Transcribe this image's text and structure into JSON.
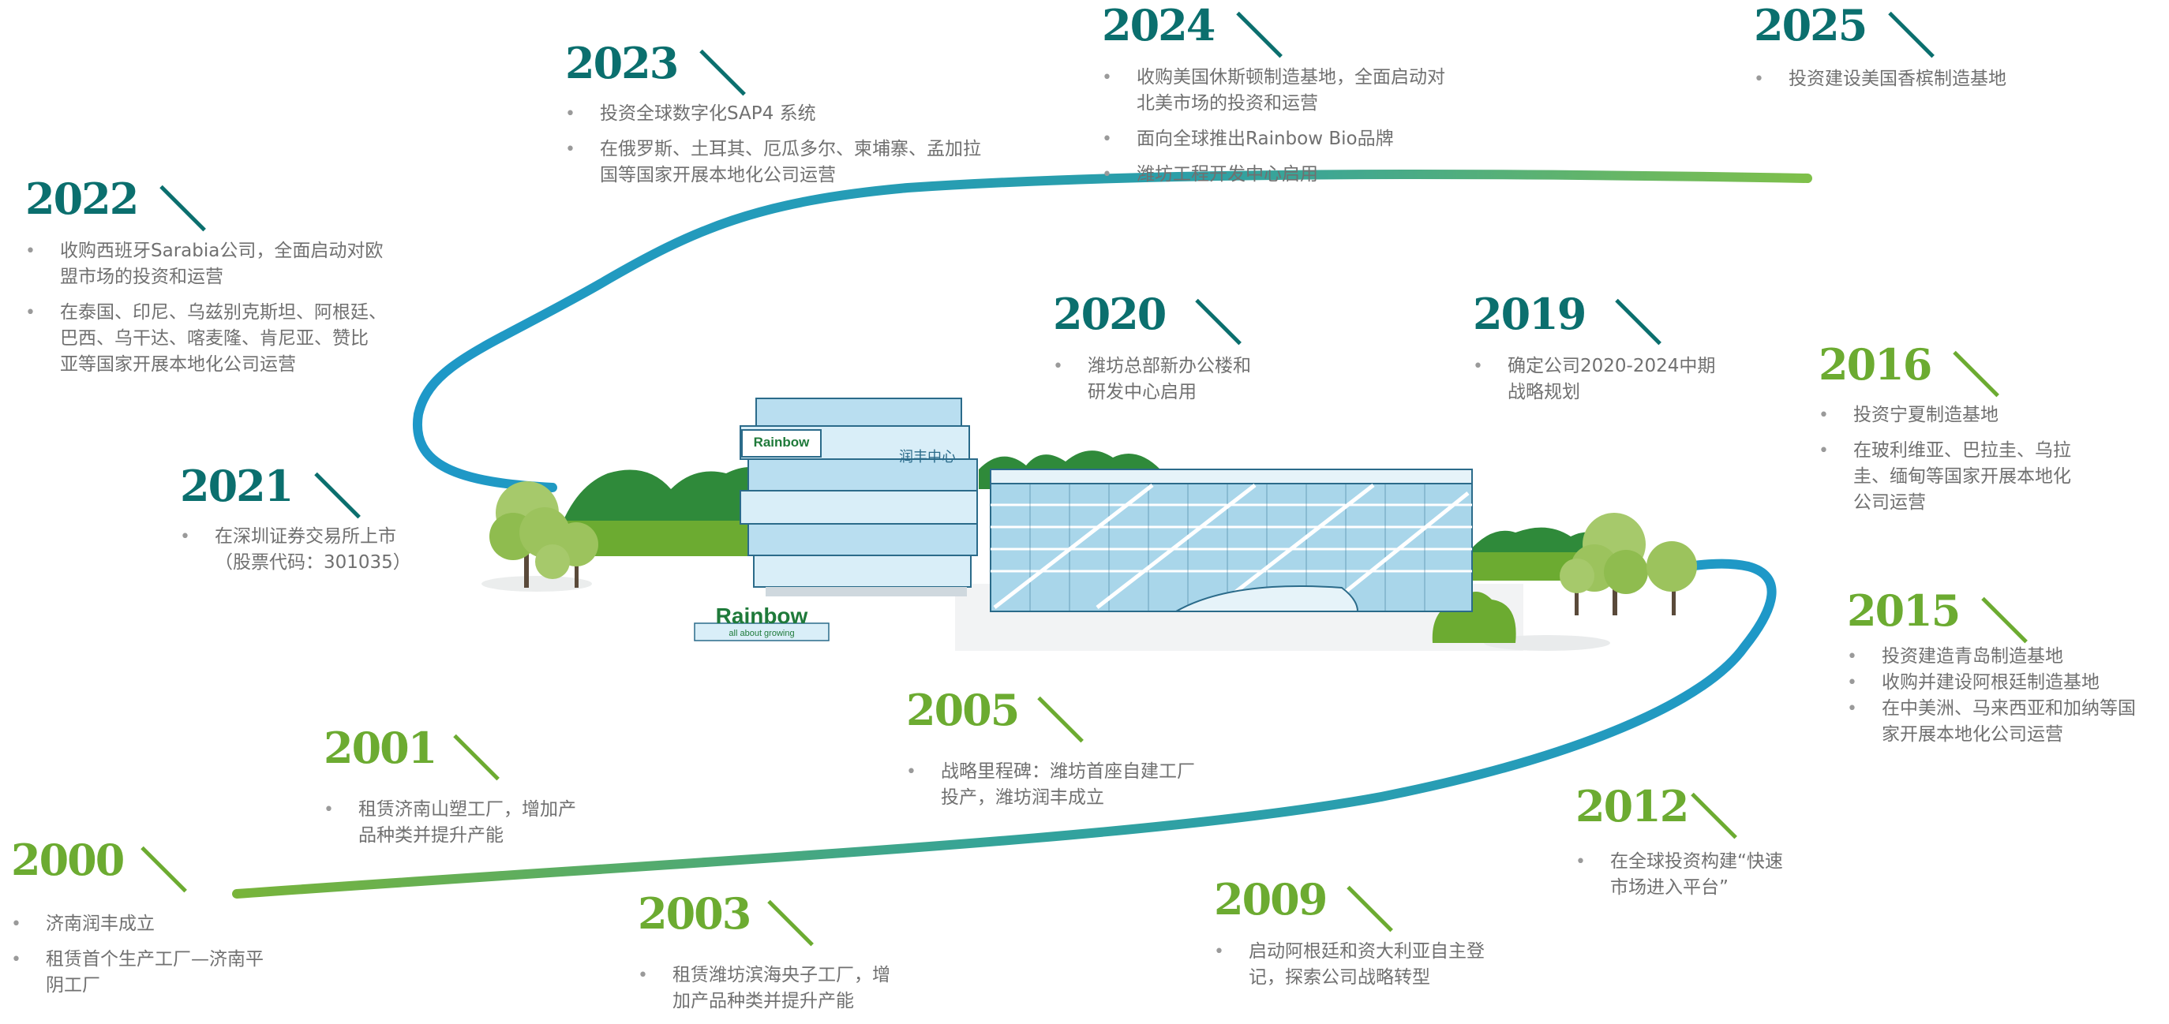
{
  "milestones": [
    {
      "key": "m2000",
      "year": "2000",
      "color": "green",
      "items": [
        "济南润丰成立",
        "租赁首个生产工厂—济南平\n阴工厂"
      ]
    },
    {
      "key": "m2001",
      "year": "2001",
      "color": "green",
      "items": [
        "租赁济南山塑工厂，增加产\n品种类并提升产能"
      ]
    },
    {
      "key": "m2003",
      "year": "2003",
      "color": "green",
      "items": [
        "租赁潍坊滨海央子工厂，增\n加产品种类并提升产能"
      ]
    },
    {
      "key": "m2005",
      "year": "2005",
      "color": "green",
      "items": [
        "战略里程碑：潍坊首座自建工厂\n投产，潍坊润丰成立"
      ]
    },
    {
      "key": "m2009",
      "year": "2009",
      "color": "green",
      "items": [
        "启动阿根廷和资大利亚自主登\n记，探索公司战略转型"
      ]
    },
    {
      "key": "m2012",
      "year": "2012",
      "color": "green",
      "items": [
        "在全球投资构建“快速\n市场进入平台”"
      ]
    },
    {
      "key": "m2015",
      "year": "2015",
      "color": "green",
      "items": [
        "投资建造青岛制造基地",
        "收购并建设阿根廷制造基地",
        "在中美洲、马来西亚和加纳等国\n家开展本地化公司运营"
      ]
    },
    {
      "key": "m2016",
      "year": "2016",
      "color": "green",
      "items": [
        "投资宁夏制造基地",
        "在玻利维亚、巴拉圭、乌拉\n圭、缅甸等国家开展本地化\n公司运营"
      ]
    },
    {
      "key": "m2019",
      "year": "2019",
      "color": "teal",
      "items": [
        "确定公司2020-2024中期\n战略规划"
      ]
    },
    {
      "key": "m2020",
      "year": "2020",
      "color": "teal",
      "items": [
        "潍坊总部新办公楼和\n研发中心启用"
      ]
    },
    {
      "key": "m2021",
      "year": "2021",
      "color": "teal",
      "items": [
        "在深圳证券交易所上市\n（股票代码：301035）"
      ]
    },
    {
      "key": "m2022",
      "year": "2022",
      "color": "teal",
      "items": [
        "收购西班牙Sarabia公司，全面启动对欧\n盟市场的投资和运营",
        "在泰国、印尼、乌兹别克斯坦、阿根廷、\n巴西、乌干达、喀麦隆、肯尼亚、赞比\n亚等国家开展本地化公司运营"
      ]
    },
    {
      "key": "m2023",
      "year": "2023",
      "color": "teal",
      "items": [
        "投资全球数字化SAP4 系统",
        "在俄罗斯、土耳其、厄瓜多尔、柬埔寨、孟加拉\n国等国家开展本地化公司运营"
      ]
    },
    {
      "key": "m2024",
      "year": "2024",
      "color": "teal",
      "items": [
        "收购美国休斯顿制造基地，全面启动对\n北美市场的投资和运营",
        "面向全球推出Rainbow Bio品牌",
        "潍坊工程开发中心启用"
      ]
    },
    {
      "key": "m2025",
      "year": "2025",
      "color": "teal",
      "items": [
        "投资建设美国香槟制造基地"
      ]
    }
  ],
  "illustration": {
    "brand_logo": "Rainbow",
    "brand_tagline": "all about growing",
    "building_sign": "润丰中心"
  },
  "colors": {
    "teal": "#0b6f6e",
    "green": "#6cab31",
    "path_blue": "#1e98c8",
    "glass": "#a9d6ea",
    "grass": "#6cab31"
  }
}
